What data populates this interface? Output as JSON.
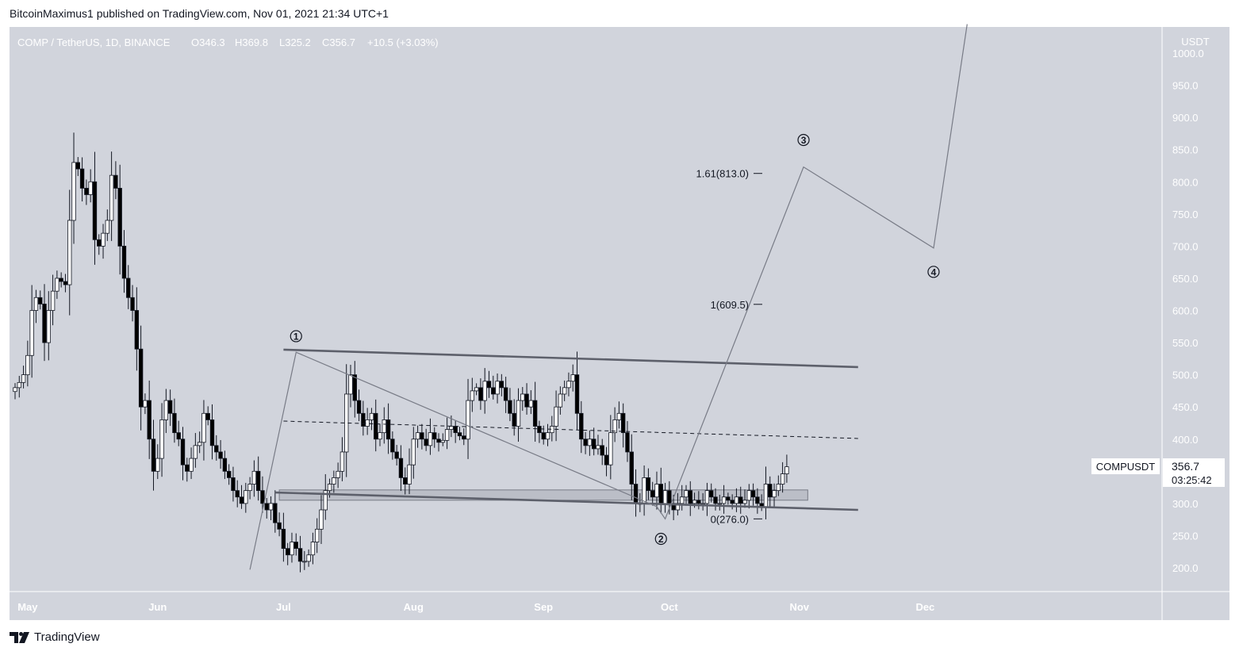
{
  "header": {
    "text": "BitcoinMaximus1 published on TradingView.com, Nov 01, 2021 21:34 UTC+1"
  },
  "ohlc": {
    "symbol": "COMP / TetherUS, 1D, BINANCE",
    "o_label": "O",
    "o": "346.3",
    "h_label": "H",
    "h": "369.8",
    "l_label": "L",
    "l": "325.2",
    "c_label": "C",
    "c": "356.7",
    "change": "+10.5 (+3.03%)"
  },
  "price_tag": {
    "symbol": "COMPUSDT",
    "price": "356.7",
    "countdown": "03:25:42"
  },
  "footer": {
    "brand": "TradingView"
  },
  "colors": {
    "background": "#d1d4dc",
    "up_candle": "#ffffff",
    "down_candle": "#000000",
    "wick": "#131722",
    "channel": "#5d606b",
    "wave_path": "#787b86",
    "support_box": "#b2b5be"
  },
  "chart_data": {
    "type": "candlestick",
    "title": "COMP / TetherUS, 1D, BINANCE",
    "y_unit": "USDT",
    "ylim": [
      175,
      1045
    ],
    "y_ticks": [
      "200.0",
      "250.0",
      "300.0",
      "350.0",
      "400.0",
      "450.0",
      "500.0",
      "550.0",
      "600.0",
      "650.0",
      "700.0",
      "750.0",
      "800.0",
      "850.0",
      "900.0",
      "950.0",
      "1000.0"
    ],
    "x_labels": [
      "May",
      "Jun",
      "Jul",
      "Aug",
      "Sep",
      "Oct",
      "Nov",
      "Dec"
    ],
    "x_range": [
      "2021-04-28",
      "2021-12-31"
    ],
    "grid": false,
    "candles": {
      "start_date": "2021-04-28",
      "close": [
        480,
        488,
        500,
        530,
        600,
        620,
        610,
        550,
        600,
        630,
        650,
        645,
        640,
        740,
        830,
        820,
        790,
        780,
        800,
        710,
        700,
        720,
        740,
        810,
        790,
        700,
        650,
        620,
        600,
        540,
        450,
        460,
        400,
        350,
        370,
        430,
        460,
        440,
        410,
        400,
        360,
        350,
        370,
        390,
        395,
        440,
        430,
        390,
        380,
        370,
        350,
        340,
        320,
        310,
        300,
        320,
        330,
        350,
        320,
        300,
        290,
        300,
        270,
        260,
        230,
        220,
        240,
        230,
        210,
        210,
        220,
        240,
        260,
        290,
        320,
        330,
        340,
        350,
        380,
        470,
        500,
        460,
        440,
        420,
        430,
        440,
        400,
        410,
        430,
        400,
        380,
        370,
        340,
        330,
        360,
        400,
        410,
        400,
        390,
        410,
        400,
        395,
        398,
        415,
        420,
        410,
        405,
        400,
        460,
        475,
        480,
        460,
        490,
        480,
        470,
        490,
        480,
        460,
        440,
        420,
        460,
        470,
        450,
        460,
        420,
        410,
        400,
        410,
        420,
        450,
        470,
        480,
        490,
        500,
        440,
        400,
        390,
        400,
        385,
        390,
        375,
        360,
        410,
        430,
        440,
        410,
        380,
        330,
        300,
        300,
        340,
        320,
        310,
        330,
        300,
        320,
        300,
        290,
        300,
        310,
        320,
        300,
        305,
        300,
        300,
        320,
        310,
        300,
        300,
        310,
        305,
        300,
        310,
        300,
        305,
        320,
        310,
        300,
        295,
        330,
        310,
        320,
        330,
        346,
        357
      ]
    },
    "annotations": {
      "fib_levels": [
        {
          "label": "1.61(813.0)",
          "value": 813.0
        },
        {
          "label": "1(609.5)",
          "value": 609.5
        },
        {
          "label": "0(276.0)",
          "value": 276.0
        }
      ],
      "waves": [
        {
          "label": "1",
          "date": "2021-07-04",
          "value": 560
        },
        {
          "label": "2",
          "date": "2021-09-29",
          "value": 245
        },
        {
          "label": "3",
          "date": "2021-11-02",
          "value": 865
        },
        {
          "label": "4",
          "date": "2021-12-03",
          "value": 660
        }
      ],
      "channel_upper": [
        {
          "date": "2021-07-01",
          "value": 539
        },
        {
          "date": "2021-11-15",
          "value": 512
        }
      ],
      "channel_lower": [
        {
          "date": "2021-06-29",
          "value": 317
        },
        {
          "date": "2021-11-15",
          "value": 290
        }
      ],
      "channel_mid": [
        {
          "date": "2021-07-01",
          "value": 428
        },
        {
          "date": "2021-11-15",
          "value": 401
        }
      ],
      "wave_path": [
        {
          "date": "2021-06-23",
          "value": 197
        },
        {
          "date": "2021-07-04",
          "value": 535
        },
        {
          "date": "2021-09-28",
          "value": 295
        },
        {
          "date": "2021-09-30",
          "value": 276
        },
        {
          "date": "2021-11-02",
          "value": 823
        },
        {
          "date": "2021-12-03",
          "value": 697
        },
        {
          "date": "2021-12-11",
          "value": 1045
        }
      ],
      "support_box": {
        "start": "2021-06-30",
        "end": "2021-11-03",
        "low": 305,
        "high": 321
      }
    }
  }
}
